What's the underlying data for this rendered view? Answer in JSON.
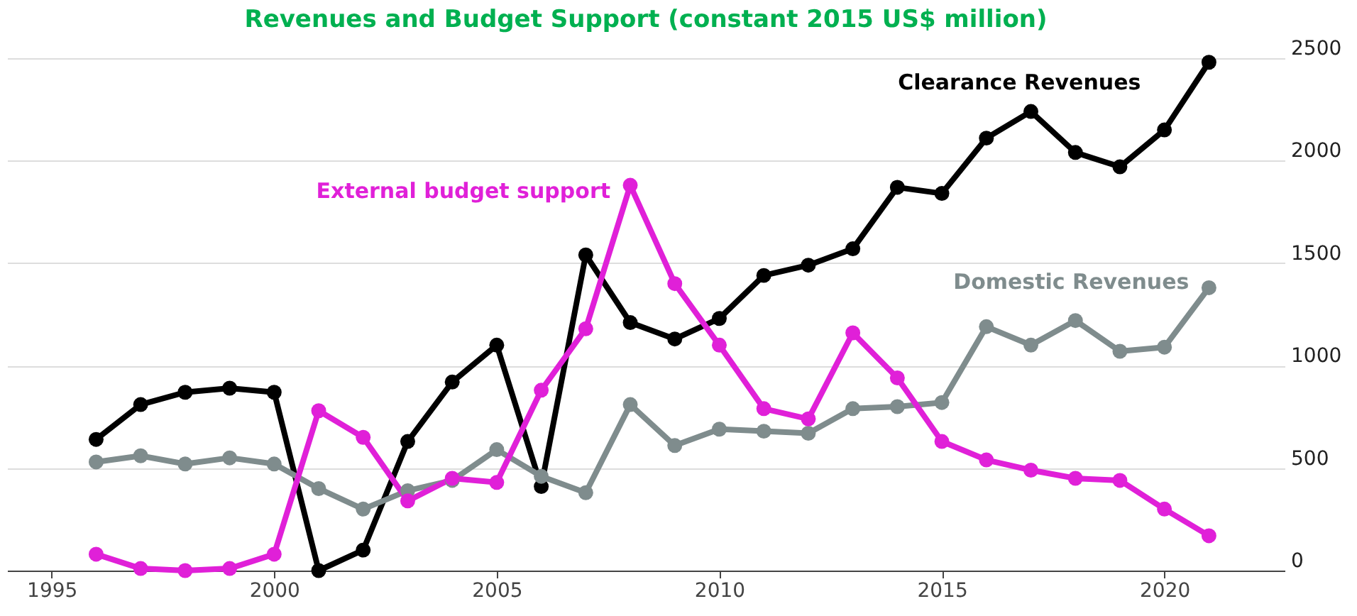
{
  "chart_data": {
    "type": "line",
    "title": "Revenues and Budget Support (constant 2015 US$ million)",
    "x": [
      1996,
      1997,
      1998,
      1999,
      2000,
      2001,
      2002,
      2003,
      2004,
      2005,
      2006,
      2007,
      2008,
      2009,
      2010,
      2011,
      2012,
      2013,
      2014,
      2015,
      2016,
      2017,
      2018,
      2019,
      2020,
      2021
    ],
    "series": [
      {
        "name": "Clearance Revenues",
        "color": "#000000",
        "values": [
          640,
          810,
          870,
          890,
          870,
          0,
          100,
          630,
          920,
          1100,
          410,
          1540,
          1210,
          1130,
          1230,
          1440,
          1490,
          1570,
          1870,
          1840,
          2110,
          2240,
          2040,
          1970,
          2150,
          2480
        ]
      },
      {
        "name": "Domestic Revenues",
        "color": "#7f8c8d",
        "values": [
          530,
          560,
          520,
          550,
          520,
          400,
          300,
          390,
          440,
          590,
          460,
          380,
          810,
          610,
          690,
          680,
          670,
          790,
          800,
          820,
          1190,
          1100,
          1220,
          1070,
          1090,
          1380
        ]
      },
      {
        "name": "External budget support",
        "color": "#e020d8",
        "values": [
          80,
          10,
          0,
          10,
          80,
          780,
          650,
          340,
          450,
          430,
          880,
          1180,
          1880,
          1400,
          1100,
          790,
          740,
          1160,
          940,
          630,
          540,
          490,
          450,
          440,
          300,
          170
        ]
      }
    ],
    "xlim": [
      1994,
      2022.7
    ],
    "xticks": [
      1995,
      2000,
      2005,
      2010,
      2015,
      2020
    ],
    "ylim": [
      0,
      2500
    ],
    "yticks": [
      0,
      500,
      1000,
      1500,
      2000,
      2500
    ],
    "grid": "y",
    "legend": false,
    "marker": "circle",
    "line_style": "solid"
  }
}
